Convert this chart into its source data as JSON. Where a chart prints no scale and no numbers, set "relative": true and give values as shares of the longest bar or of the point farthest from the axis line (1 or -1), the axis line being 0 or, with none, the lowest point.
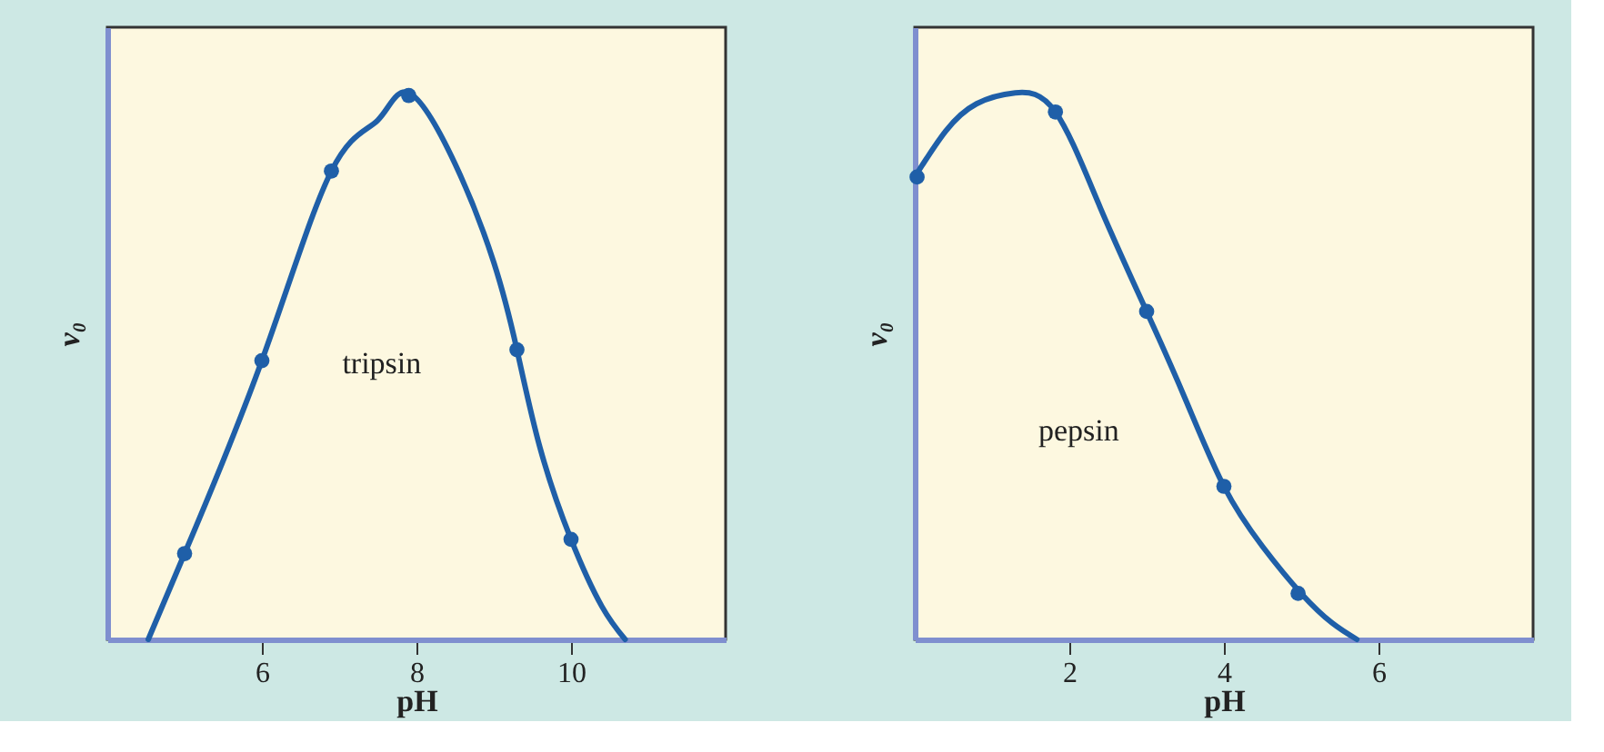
{
  "chart_data": [
    {
      "type": "line",
      "relative": true,
      "xlabel": "pH",
      "ylabel": "v₀",
      "xlim": [
        4,
        12
      ],
      "xticks": [
        6,
        8,
        10
      ],
      "annotations": [
        "tripsin"
      ],
      "grid": false,
      "series": [
        {
          "color": "#1f5fa8",
          "line_style": "solid",
          "marker": "none",
          "x": [
            4.53,
            5,
            6,
            6.9,
            7.5,
            7.9,
            8.5,
            9,
            9.3,
            9.6,
            10,
            10.4,
            10.7
          ],
          "values": [
            0,
            0.157,
            0.51,
            0.857,
            0.95,
            1.0,
            0.87,
            0.69,
            0.53,
            0.35,
            0.183,
            0.06,
            0
          ]
        },
        {
          "type": "scatter",
          "color": "#1f5fa8",
          "marker": "circle",
          "x": [
            5,
            6,
            6.9,
            7.9,
            9.3,
            10
          ],
          "values": [
            0.157,
            0.51,
            0.857,
            0.995,
            0.53,
            0.183
          ]
        }
      ]
    },
    {
      "type": "line",
      "relative": true,
      "xlabel": "pH",
      "ylabel": "v₀",
      "xlim": [
        0,
        8
      ],
      "xticks": [
        2,
        4,
        6
      ],
      "annotations": [
        "pepsin"
      ],
      "grid": false,
      "series": [
        {
          "color": "#1f5fa8",
          "line_style": "solid",
          "marker": "none",
          "x": [
            0,
            0.4,
            0.8,
            1.3,
            1.82,
            2.4,
            3,
            3.5,
            4,
            4.5,
            5,
            5.4,
            5.72
          ],
          "values": [
            0.846,
            0.93,
            0.98,
            1.0,
            0.965,
            0.79,
            0.6,
            0.44,
            0.28,
            0.17,
            0.084,
            0.03,
            0
          ]
        },
        {
          "type": "scatter",
          "color": "#1f5fa8",
          "marker": "circle",
          "x": [
            0.03,
            1.82,
            3,
            4,
            4.96
          ],
          "values": [
            0.846,
            0.965,
            0.6,
            0.28,
            0.084
          ]
        }
      ]
    }
  ]
}
